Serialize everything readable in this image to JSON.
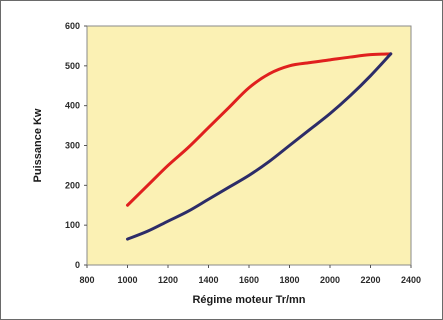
{
  "chart_data": {
    "type": "line",
    "title": "",
    "xlabel": "Régime moteur Tr/mn",
    "ylabel": "Puissance Kw",
    "xlim": [
      800,
      2400
    ],
    "ylim": [
      0,
      600
    ],
    "x_ticks": [
      "800",
      "1000",
      "1200",
      "1400",
      "1600",
      "1800",
      "2000",
      "2200",
      "2400"
    ],
    "y_ticks": [
      "0",
      "100",
      "200",
      "300",
      "400",
      "500",
      "600"
    ],
    "grid": false,
    "plot_background": "#fbf1b4",
    "series": [
      {
        "color": "#e0201e",
        "x": [
          1000,
          1100,
          1200,
          1300,
          1400,
          1500,
          1600,
          1700,
          1800,
          1900,
          2000,
          2100,
          2200,
          2300
        ],
        "y": [
          150,
          200,
          250,
          295,
          345,
          395,
          445,
          480,
          500,
          508,
          515,
          522,
          528,
          530
        ]
      },
      {
        "color": "#2c2c68",
        "x": [
          1000,
          1100,
          1200,
          1300,
          1400,
          1500,
          1600,
          1700,
          1800,
          1900,
          2000,
          2100,
          2200,
          2300
        ],
        "y": [
          65,
          85,
          110,
          135,
          165,
          195,
          225,
          260,
          300,
          340,
          380,
          425,
          475,
          530
        ]
      }
    ]
  }
}
